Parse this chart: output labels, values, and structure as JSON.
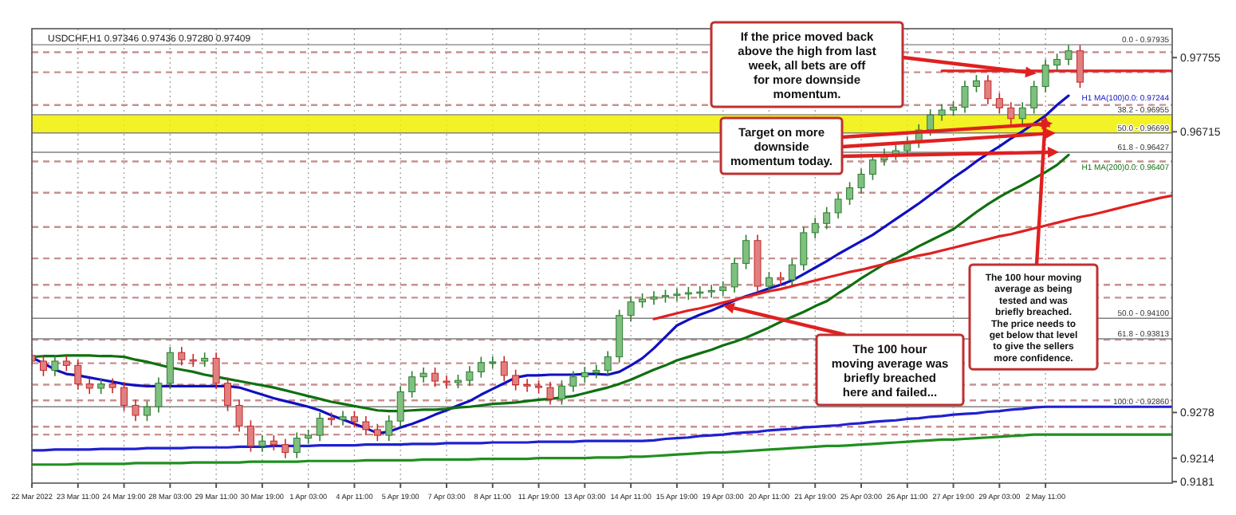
{
  "chart_data": {
    "type": "candlestick",
    "title": "USDCHF,H1 0.97346 0.97436 0.97280 0.97409",
    "categories": [
      "22 Mar 2022",
      null,
      null,
      null,
      "23 Mar 11:00",
      null,
      null,
      null,
      "24 Mar 19:00",
      null,
      null,
      null,
      "28 Mar 03:00",
      null,
      null,
      null,
      "29 Mar 11:00",
      null,
      null,
      null,
      "30 Mar 19:00",
      null,
      null,
      null,
      "1 Apr 03:00",
      null,
      null,
      null,
      "4 Apr 11:00",
      null,
      null,
      null,
      "5 Apr 19:00",
      null,
      null,
      null,
      "7 Apr 03:00",
      null,
      null,
      null,
      "8 Apr 11:00",
      null,
      null,
      null,
      "11 Apr 19:00",
      null,
      null,
      null,
      "13 Apr 03:00",
      null,
      null,
      null,
      "14 Apr 11:00",
      null,
      null,
      null,
      "15 Apr 19:00",
      null,
      null,
      null,
      "19 Apr 03:00",
      null,
      null,
      null,
      "20 Apr 11:00",
      null,
      null,
      null,
      "21 Apr 19:00",
      null,
      null,
      null,
      "25 Apr 03:00",
      null,
      null,
      null,
      "26 Apr 11:00",
      null,
      null,
      null,
      "27 Apr 19:00",
      null,
      null,
      null,
      "29 Apr 03:00",
      null,
      null,
      null,
      "2 May 11:00",
      null,
      null,
      null,
      null,
      null,
      null,
      null,
      null,
      null,
      null,
      null
    ],
    "ohlc": [
      [
        0.9358,
        0.9366,
        0.9342,
        0.935
      ],
      [
        0.935,
        0.9358,
        0.9329,
        0.9337
      ],
      [
        0.9337,
        0.9358,
        0.9329,
        0.935
      ],
      [
        0.935,
        0.9358,
        0.9336,
        0.9344
      ],
      [
        0.9344,
        0.9352,
        0.931,
        0.9318
      ],
      [
        0.9318,
        0.9326,
        0.9304,
        0.9312
      ],
      [
        0.9312,
        0.9326,
        0.9304,
        0.9318
      ],
      [
        0.9318,
        0.9326,
        0.9305,
        0.9313
      ],
      [
        0.9313,
        0.9321,
        0.928,
        0.9288
      ],
      [
        0.9288,
        0.9296,
        0.9266,
        0.9274
      ],
      [
        0.9274,
        0.9294,
        0.9266,
        0.9286
      ],
      [
        0.9286,
        0.9327,
        0.9278,
        0.9319
      ],
      [
        0.9319,
        0.937,
        0.9311,
        0.9362
      ],
      [
        0.9362,
        0.937,
        0.9344,
        0.9352
      ],
      [
        0.9352,
        0.936,
        0.9342,
        0.935
      ],
      [
        0.935,
        0.9362,
        0.9342,
        0.9354
      ],
      [
        0.9354,
        0.9362,
        0.9311,
        0.9319
      ],
      [
        0.9319,
        0.9327,
        0.928,
        0.9288
      ],
      [
        0.9288,
        0.9296,
        0.9251,
        0.9259
      ],
      [
        0.9259,
        0.9267,
        0.9223,
        0.9231
      ],
      [
        0.9231,
        0.9246,
        0.9223,
        0.9238
      ],
      [
        0.9238,
        0.9246,
        0.9225,
        0.9233
      ],
      [
        0.9233,
        0.9241,
        0.9214,
        0.9222
      ],
      [
        0.9222,
        0.925,
        0.9214,
        0.9242
      ],
      [
        0.9242,
        0.9254,
        0.9234,
        0.9246
      ],
      [
        0.9246,
        0.9278,
        0.9238,
        0.927
      ],
      [
        0.927,
        0.9278,
        0.926,
        0.9268
      ],
      [
        0.9268,
        0.928,
        0.926,
        0.9272
      ],
      [
        0.9272,
        0.928,
        0.9257,
        0.9265
      ],
      [
        0.9265,
        0.9273,
        0.9246,
        0.9254
      ],
      [
        0.9254,
        0.9262,
        0.9238,
        0.9246
      ],
      [
        0.9246,
        0.9274,
        0.9238,
        0.9266
      ],
      [
        0.9266,
        0.9315,
        0.9258,
        0.9307
      ],
      [
        0.9307,
        0.9336,
        0.9299,
        0.9328
      ],
      [
        0.9328,
        0.9341,
        0.932,
        0.9333
      ],
      [
        0.9333,
        0.9341,
        0.9314,
        0.9322
      ],
      [
        0.9322,
        0.933,
        0.9312,
        0.932
      ],
      [
        0.932,
        0.9331,
        0.9312,
        0.9323
      ],
      [
        0.9323,
        0.9343,
        0.9315,
        0.9335
      ],
      [
        0.9335,
        0.9356,
        0.9327,
        0.9348
      ],
      [
        0.9348,
        0.9357,
        0.934,
        0.9349
      ],
      [
        0.9349,
        0.9357,
        0.9322,
        0.933
      ],
      [
        0.933,
        0.9338,
        0.9309,
        0.9317
      ],
      [
        0.9317,
        0.9325,
        0.9307,
        0.9315
      ],
      [
        0.9315,
        0.9323,
        0.9305,
        0.9313
      ],
      [
        0.9313,
        0.9321,
        0.9289,
        0.9297
      ],
      [
        0.9297,
        0.9323,
        0.9289,
        0.9315
      ],
      [
        0.9315,
        0.9336,
        0.9307,
        0.9328
      ],
      [
        0.9328,
        0.9342,
        0.932,
        0.9334
      ],
      [
        0.9334,
        0.9345,
        0.9326,
        0.9337
      ],
      [
        0.9337,
        0.9364,
        0.9329,
        0.9356
      ],
      [
        0.9356,
        0.9422,
        0.9348,
        0.9414
      ],
      [
        0.9414,
        0.9441,
        0.9406,
        0.9433
      ],
      [
        0.9433,
        0.9445,
        0.9425,
        0.9437
      ],
      [
        0.9437,
        0.9448,
        0.9429,
        0.944
      ],
      [
        0.944,
        0.945,
        0.9432,
        0.9442
      ],
      [
        0.9442,
        0.9452,
        0.9434,
        0.9444
      ],
      [
        0.9444,
        0.9454,
        0.9436,
        0.9446
      ],
      [
        0.9446,
        0.9455,
        0.9438,
        0.9447
      ],
      [
        0.9447,
        0.9457,
        0.9439,
        0.9449
      ],
      [
        0.9449,
        0.9462,
        0.9441,
        0.9454
      ],
      [
        0.9454,
        0.9495,
        0.9446,
        0.9487
      ],
      [
        0.9487,
        0.9527,
        0.9479,
        0.9519
      ],
      [
        0.9519,
        0.9527,
        0.9447,
        0.9455
      ],
      [
        0.9455,
        0.9475,
        0.9447,
        0.9467
      ],
      [
        0.9467,
        0.9475,
        0.9456,
        0.9464
      ],
      [
        0.9464,
        0.9493,
        0.9456,
        0.9485
      ],
      [
        0.9485,
        0.9538,
        0.9477,
        0.953
      ],
      [
        0.953,
        0.9551,
        0.9522,
        0.9543
      ],
      [
        0.9543,
        0.9566,
        0.9535,
        0.9558
      ],
      [
        0.9558,
        0.9585,
        0.955,
        0.9577
      ],
      [
        0.9577,
        0.9601,
        0.9569,
        0.9593
      ],
      [
        0.9593,
        0.962,
        0.9585,
        0.9612
      ],
      [
        0.9612,
        0.964,
        0.9604,
        0.9632
      ],
      [
        0.9632,
        0.9648,
        0.9624,
        0.964
      ],
      [
        0.964,
        0.9653,
        0.9632,
        0.9645
      ],
      [
        0.9645,
        0.9665,
        0.9637,
        0.9657
      ],
      [
        0.9657,
        0.9682,
        0.9649,
        0.9674
      ],
      [
        0.9674,
        0.9703,
        0.9666,
        0.9695
      ],
      [
        0.9695,
        0.971,
        0.9687,
        0.9702
      ],
      [
        0.9702,
        0.9714,
        0.9694,
        0.9706
      ],
      [
        0.9706,
        0.9743,
        0.9698,
        0.9735
      ],
      [
        0.9735,
        0.9751,
        0.9727,
        0.9743
      ],
      [
        0.9743,
        0.9751,
        0.971,
        0.9718
      ],
      [
        0.9718,
        0.9726,
        0.9697,
        0.9705
      ],
      [
        0.9705,
        0.9713,
        0.9682,
        0.969
      ],
      [
        0.969,
        0.9713,
        0.9682,
        0.9705
      ],
      [
        0.9705,
        0.9743,
        0.9697,
        0.9735
      ],
      [
        0.9735,
        0.9773,
        0.9727,
        0.9765
      ],
      [
        0.9765,
        0.9781,
        0.9757,
        0.9773
      ],
      [
        0.9773,
        0.9793,
        0.9765,
        0.9785
      ],
      [
        0.9785,
        0.9793,
        0.9733,
        0.9741
      ],
      null,
      null,
      null,
      null,
      null,
      null,
      null,
      null
    ],
    "series": [
      {
        "type": "line",
        "name": "H1 MA(100)0.0: 0.97244",
        "color": "#1010c0",
        "values": [
          0.9355,
          0.9347,
          0.9338,
          0.9332,
          0.933,
          0.9327,
          0.9324,
          0.9321,
          0.9318,
          0.9316,
          0.9315,
          0.9315,
          0.9315,
          0.9315,
          0.9315,
          0.9315,
          0.9315,
          0.9315,
          0.9313,
          0.9308,
          0.9303,
          0.9298,
          0.9294,
          0.929,
          0.9286,
          0.9281,
          0.9274,
          0.9268,
          0.9262,
          0.9256,
          0.9249,
          0.9251,
          0.9257,
          0.9262,
          0.9268,
          0.9275,
          0.9281,
          0.9288,
          0.9294,
          0.9303,
          0.9311,
          0.9319,
          0.9327,
          0.933,
          0.933,
          0.9331,
          0.9331,
          0.9331,
          0.9332,
          0.9332,
          0.9331,
          0.9335,
          0.9344,
          0.9354,
          0.9368,
          0.9384,
          0.94,
          0.9408,
          0.9415,
          0.9421,
          0.9428,
          0.9435,
          0.9441,
          0.9446,
          0.9452,
          0.9457,
          0.9463,
          0.9472,
          0.9481,
          0.949,
          0.95,
          0.9509,
          0.9518,
          0.9527,
          0.9538,
          0.9549,
          0.956,
          0.9571,
          0.9583,
          0.9595,
          0.9607,
          0.9618,
          0.963,
          0.9641,
          0.9651,
          0.9662,
          0.9672,
          0.9683,
          0.9694,
          0.9709,
          0.9722,
          null,
          null,
          null,
          null,
          null,
          null,
          null,
          null,
          null
        ]
      },
      {
        "type": "line",
        "name": "H1 MA(200)0.0: 0.96407",
        "color": "#107010",
        "values": [
          0.9356,
          0.9357,
          0.9357,
          0.9358,
          0.9358,
          0.9358,
          0.9357,
          0.9357,
          0.9356,
          0.9352,
          0.9349,
          0.9345,
          0.9341,
          0.9338,
          0.9335,
          0.9331,
          0.9328,
          0.9325,
          0.9322,
          0.9319,
          0.9316,
          0.9313,
          0.9309,
          0.9305,
          0.9301,
          0.9297,
          0.9293,
          0.929,
          0.9287,
          0.9284,
          0.9281,
          0.928,
          0.928,
          0.9281,
          0.9282,
          0.9282,
          0.9283,
          0.9285,
          0.9286,
          0.9288,
          0.929,
          0.9291,
          0.9292,
          0.9294,
          0.9296,
          0.9297,
          0.9299,
          0.9301,
          0.9305,
          0.9309,
          0.9313,
          0.9318,
          0.9324,
          0.9331,
          0.9338,
          0.9344,
          0.9351,
          0.9356,
          0.9361,
          0.9366,
          0.9372,
          0.9377,
          0.9383,
          0.939,
          0.9397,
          0.9405,
          0.9412,
          0.9419,
          0.9427,
          0.9434,
          0.9445,
          0.9455,
          0.9466,
          0.9476,
          0.9486,
          0.9494,
          0.9502,
          0.9511,
          0.9519,
          0.9527,
          0.9535,
          0.9547,
          0.9559,
          0.957,
          0.958,
          0.9589,
          0.9597,
          0.9606,
          0.9615,
          0.9625,
          0.9639,
          null,
          null,
          null,
          null,
          null,
          null,
          null,
          null,
          null
        ]
      },
      {
        "type": "line",
        "color": "#2020d0",
        "values": [
          0.9225,
          0.9225,
          0.9226,
          0.9226,
          0.9226,
          0.9226,
          0.9227,
          0.9227,
          0.9227,
          0.9227,
          0.9228,
          0.9228,
          0.9228,
          0.9228,
          0.9229,
          0.9229,
          0.9229,
          0.9229,
          0.923,
          0.923,
          0.923,
          0.9231,
          0.9231,
          0.9231,
          0.9231,
          0.9232,
          0.9232,
          0.9232,
          0.9232,
          0.9233,
          0.9233,
          0.9233,
          0.9233,
          0.9234,
          0.9234,
          0.9234,
          0.9235,
          0.9235,
          0.9235,
          0.9235,
          0.9236,
          0.9236,
          0.9236,
          0.9236,
          0.9237,
          0.9237,
          0.9237,
          0.9237,
          0.9238,
          0.9238,
          0.9238,
          0.9238,
          0.9238,
          0.9238,
          0.9239,
          0.9241,
          0.9242,
          0.9243,
          0.9245,
          0.9246,
          0.9247,
          0.9249,
          0.925,
          0.9251,
          0.9253,
          0.9254,
          0.9255,
          0.9257,
          0.9258,
          0.9259,
          0.926,
          0.9262,
          0.9263,
          0.9265,
          0.9266,
          0.9267,
          0.9269,
          0.927,
          0.9272,
          0.9273,
          0.9275,
          0.9276,
          0.9277,
          0.9279,
          0.928,
          0.9282,
          0.9283,
          0.9285,
          0.9286,
          0.9286,
          0.9286,
          0.9286,
          0.9286,
          0.9286,
          0.9286,
          0.9286,
          0.9286,
          0.9286,
          0.9286,
          0.9286
        ]
      },
      {
        "type": "line",
        "color": "#209020",
        "values": [
          0.9205,
          0.9205,
          0.9205,
          0.9205,
          0.9206,
          0.9206,
          0.9206,
          0.9206,
          0.9206,
          0.9207,
          0.9207,
          0.9207,
          0.9207,
          0.9207,
          0.9208,
          0.9208,
          0.9208,
          0.9208,
          0.9208,
          0.9209,
          0.9209,
          0.9209,
          0.9209,
          0.9209,
          0.921,
          0.921,
          0.921,
          0.921,
          0.921,
          0.9211,
          0.9211,
          0.9211,
          0.9211,
          0.9211,
          0.9212,
          0.9212,
          0.9212,
          0.9212,
          0.9212,
          0.9213,
          0.9213,
          0.9213,
          0.9213,
          0.9213,
          0.9214,
          0.9214,
          0.9214,
          0.9214,
          0.9214,
          0.9215,
          0.9215,
          0.9215,
          0.9216,
          0.9216,
          0.9217,
          0.9218,
          0.9219,
          0.922,
          0.9221,
          0.9222,
          0.9222,
          0.9223,
          0.9224,
          0.9225,
          0.9226,
          0.9227,
          0.9228,
          0.9229,
          0.923,
          0.9231,
          0.9231,
          0.9232,
          0.9233,
          0.9234,
          0.9235,
          0.9236,
          0.9237,
          0.9238,
          0.9239,
          0.924,
          0.924,
          0.9241,
          0.9242,
          0.9243,
          0.9244,
          0.9245,
          0.9246,
          0.9247,
          0.9247,
          0.9247,
          0.9247,
          0.9247,
          0.9247,
          0.9247,
          0.9247,
          0.9247,
          0.9247,
          0.9247,
          0.9247,
          0.9247
        ]
      },
      {
        "type": "line",
        "color": "#e02020",
        "values": [
          null,
          null,
          null,
          null,
          null,
          null,
          null,
          null,
          null,
          null,
          null,
          null,
          null,
          null,
          null,
          null,
          null,
          null,
          null,
          null,
          null,
          null,
          null,
          null,
          null,
          null,
          null,
          null,
          null,
          null,
          null,
          null,
          null,
          null,
          null,
          null,
          null,
          null,
          null,
          null,
          null,
          null,
          null,
          null,
          null,
          null,
          null,
          null,
          null,
          null,
          null,
          null,
          null,
          null,
          0.9409,
          0.9413,
          0.9417,
          0.9421,
          0.9424,
          0.9428,
          0.9432,
          0.9436,
          0.944,
          0.9444,
          0.9448,
          0.9451,
          0.9455,
          0.9459,
          0.9463,
          0.9467,
          0.9471,
          0.9475,
          0.9478,
          0.9482,
          0.9486,
          0.949,
          0.9494,
          0.9498,
          0.9501,
          0.9505,
          0.9509,
          0.9513,
          0.9517,
          0.9521,
          0.9525,
          0.9528,
          0.9532,
          0.9536,
          0.954,
          0.9544,
          0.9548,
          0.9552,
          0.9555,
          0.9559,
          0.9563,
          0.9567,
          0.9571,
          0.9575,
          0.9579,
          0.9582
        ]
      },
      {
        "type": "line",
        "color": "#e02020",
        "values": [
          null,
          null,
          null,
          null,
          null,
          null,
          null,
          null,
          null,
          null,
          null,
          null,
          null,
          null,
          null,
          null,
          null,
          null,
          null,
          null,
          null,
          null,
          null,
          null,
          null,
          null,
          null,
          null,
          null,
          null,
          null,
          null,
          null,
          null,
          null,
          null,
          null,
          null,
          null,
          null,
          null,
          null,
          null,
          null,
          null,
          null,
          null,
          null,
          null,
          null,
          null,
          null,
          null,
          null,
          null,
          null,
          null,
          null,
          null,
          null,
          null,
          null,
          null,
          null,
          null,
          null,
          null,
          null,
          null,
          null,
          null,
          null,
          null,
          null,
          null,
          null,
          null,
          null,
          null,
          0.9757,
          0.9757,
          0.9757,
          0.9757,
          0.9757,
          0.9757,
          0.9757,
          0.9757,
          0.9757,
          0.9757,
          0.9757,
          0.9757,
          0.9757,
          0.9757,
          0.9757,
          0.9757,
          0.9757,
          0.9757,
          0.9757,
          0.9757,
          0.9757
        ]
      }
    ],
    "ylim": [
      0.9179,
      0.9816
    ],
    "yticks": [
      0.97755,
      0.96715,
      0.9278,
      0.9214,
      0.9181
    ],
    "grid": "x",
    "bands": [
      {
        "axis": "y",
        "from": 0.96699,
        "to": 0.96955,
        "color": "#f0f000"
      }
    ],
    "ref_lines": [
      {
        "axis": "y",
        "value": 0.9783,
        "color": "#c89090",
        "line_style": "dashed"
      },
      {
        "axis": "y",
        "value": 0.9755,
        "color": "#c89090",
        "line_style": "dashed"
      },
      {
        "axis": "y",
        "value": 0.9709,
        "color": "#c89090",
        "line_style": "dashed"
      },
      {
        "axis": "y",
        "value": 0.963,
        "color": "#c89090",
        "line_style": "dashed"
      },
      {
        "axis": "y",
        "value": 0.9586,
        "color": "#c89090",
        "line_style": "dashed"
      },
      {
        "axis": "y",
        "value": 0.9538,
        "color": "#c89090",
        "line_style": "dashed"
      },
      {
        "axis": "y",
        "value": 0.9494,
        "color": "#c89090",
        "line_style": "dashed"
      },
      {
        "axis": "y",
        "value": 0.9457,
        "color": "#c89090",
        "line_style": "dashed"
      },
      {
        "axis": "y",
        "value": 0.9439,
        "color": "#c89090",
        "line_style": "dashed"
      },
      {
        "axis": "y",
        "value": 0.938,
        "color": "#c89090",
        "line_style": "dashed"
      },
      {
        "axis": "y",
        "value": 0.9347,
        "color": "#c89090",
        "line_style": "dashed"
      },
      {
        "axis": "y",
        "value": 0.9317,
        "color": "#c89090",
        "line_style": "dashed"
      },
      {
        "axis": "y",
        "value": 0.9295,
        "color": "#c89090",
        "line_style": "dashed"
      },
      {
        "axis": "y",
        "value": 0.9258,
        "color": "#c89090",
        "line_style": "dashed"
      },
      {
        "axis": "y",
        "value": 0.9247,
        "color": "#c89090",
        "line_style": "dashed"
      },
      {
        "axis": "y",
        "value": 0.97935,
        "color": "#808080",
        "line_style": "solid"
      },
      {
        "axis": "y",
        "value": 0.96955,
        "color": "#808080",
        "line_style": "solid"
      },
      {
        "axis": "y",
        "value": 0.96699,
        "color": "#808080",
        "line_style": "solid"
      },
      {
        "axis": "y",
        "value": 0.96427,
        "color": "#808080",
        "line_style": "solid"
      },
      {
        "axis": "y",
        "value": 0.941,
        "color": "#808080",
        "line_style": "solid"
      },
      {
        "axis": "y",
        "value": 0.93813,
        "color": "#808080",
        "line_style": "solid"
      },
      {
        "axis": "y",
        "value": 0.9286,
        "color": "#808080",
        "line_style": "solid"
      }
    ],
    "annotations": [
      "If the price moved back above the high from last week, all bets are off for more downside momentum.",
      {
        "text": "Target on more downside momentum today.",
        "y": 0.96699
      },
      {
        "text": "The 100 hour moving average as being tested and was briefly breached. The price needs to get below that level to give the sellers more confidence.",
        "x": "2 May 11:00",
        "y": 0.9694
      },
      {
        "text": "The 100 hour moving average was briefly breached here and failed...",
        "x": "19 Apr 03:00",
        "y": 0.9428
      },
      {
        "text": "0.0 - 0.97935",
        "y": 0.97935
      },
      {
        "text": "38.2 - 0.96955",
        "y": 0.96955
      },
      {
        "text": "50.0 - 0.96699",
        "y": 0.96699
      },
      {
        "text": "61.8 - 0.96427",
        "y": 0.96427
      },
      {
        "text": "50.0 - 0.94100",
        "y": 0.941
      },
      {
        "text": "61.8 - 0.93813",
        "y": 0.93813
      },
      {
        "text": "100.0 - 0.92860",
        "y": 0.9286
      }
    ]
  }
}
